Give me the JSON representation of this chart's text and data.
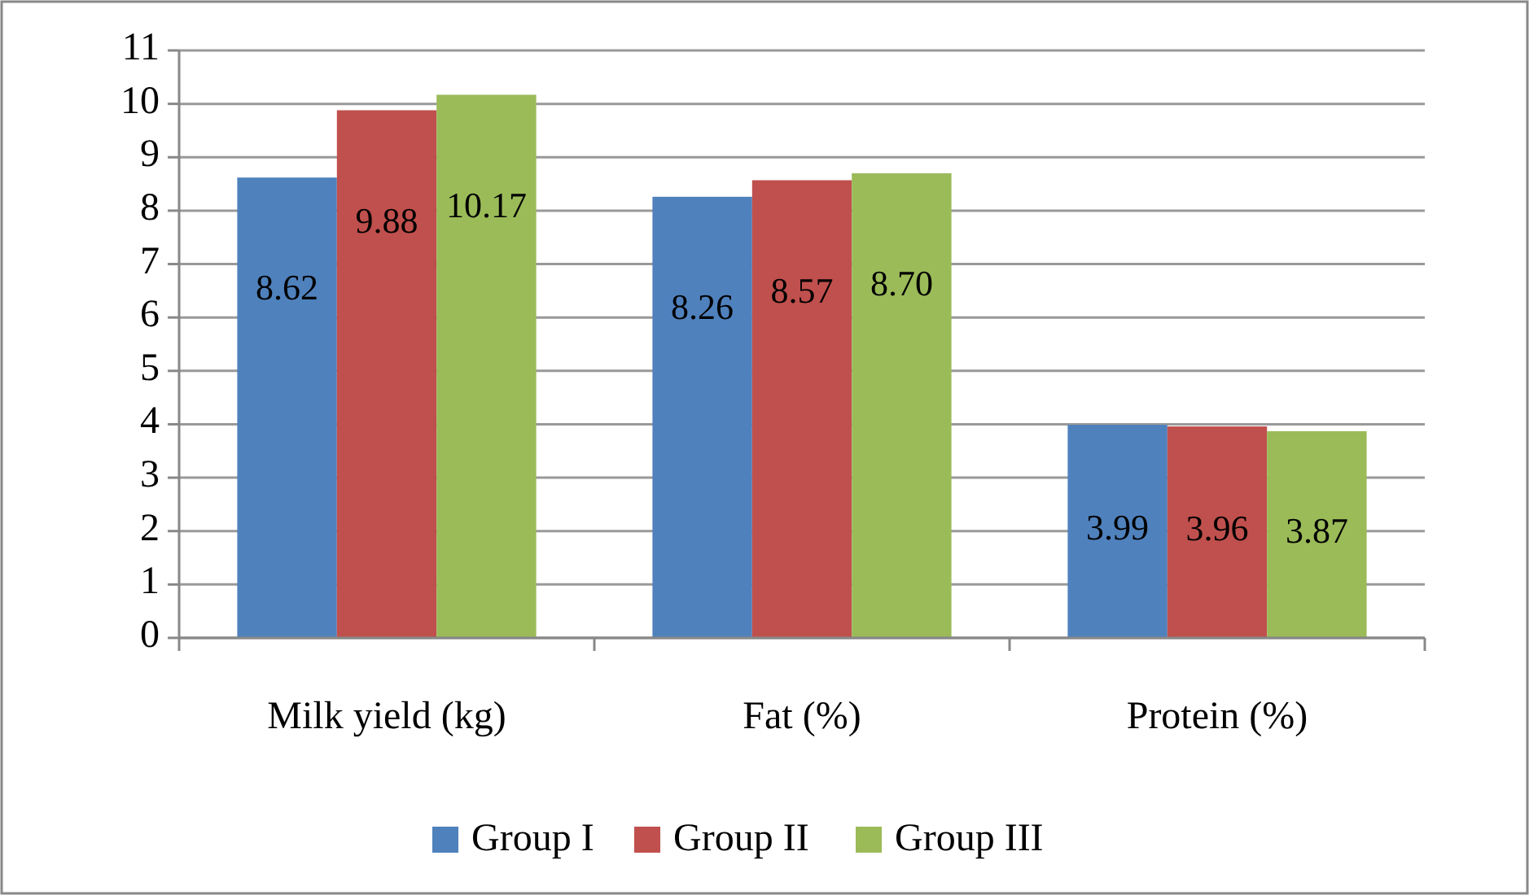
{
  "chart_data": {
    "type": "bar",
    "categories": [
      "Milk yield (kg)",
      "Fat (%)",
      "Protein (%)"
    ],
    "series": [
      {
        "name": "Group I",
        "color": "#4f81bd",
        "values": [
          8.62,
          8.26,
          3.99
        ]
      },
      {
        "name": "Group II",
        "color": "#c0504d",
        "values": [
          9.88,
          8.57,
          3.96
        ]
      },
      {
        "name": "Group III",
        "color": "#9bbb59",
        "values": [
          10.17,
          8.7,
          3.87
        ]
      }
    ],
    "value_labels": [
      [
        "8.62",
        "8.26",
        "3.99"
      ],
      [
        "9.88",
        "8.57",
        "3.96"
      ],
      [
        "10.17",
        "8.70",
        "3.87"
      ]
    ],
    "ylim": [
      0,
      11
    ],
    "yticks": [
      0,
      1,
      2,
      3,
      4,
      5,
      6,
      7,
      8,
      9,
      10,
      11
    ],
    "grid": "y",
    "legend": "bottom"
  }
}
